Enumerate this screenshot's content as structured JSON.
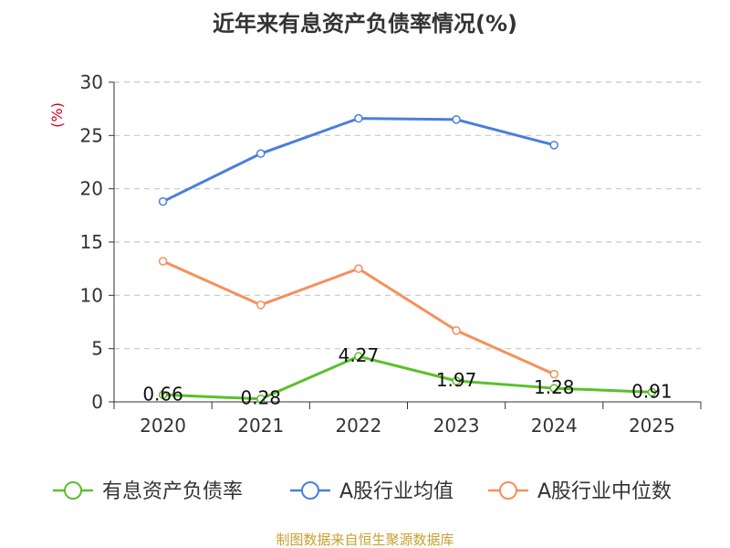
{
  "source": "制图数据来自恒生聚源数据库",
  "colors": {
    "source_text": "#c8a030",
    "ylabel_text": "#d0021b",
    "axis": "#333333",
    "grid": "#c8c8c8"
  },
  "chart_data": {
    "type": "line",
    "title": "近年来有息资产负债率情况(%)",
    "ylabel": "(%)",
    "xlabel": "",
    "categories": [
      "2020",
      "2021",
      "2022",
      "2023",
      "2024",
      "2025"
    ],
    "ylim": [
      0,
      30
    ],
    "yticks": [
      0,
      5,
      10,
      15,
      20,
      25,
      30
    ],
    "grid": true,
    "legend_position": "bottom",
    "series": [
      {
        "name": "有息资产负债率",
        "color": "#5ac02a",
        "values": [
          0.66,
          0.28,
          4.27,
          1.97,
          1.28,
          0.91
        ],
        "labels": [
          "0.66",
          "0.28",
          "4.27",
          "1.97",
          "1.28",
          "0.91"
        ]
      },
      {
        "name": "A股行业均值",
        "color": "#4a7fdc",
        "values": [
          18.8,
          23.3,
          26.6,
          26.5,
          24.1,
          null
        ]
      },
      {
        "name": "A股行业中位数",
        "color": "#f5905a",
        "values": [
          13.2,
          9.1,
          12.5,
          6.7,
          2.6,
          null
        ]
      }
    ]
  }
}
